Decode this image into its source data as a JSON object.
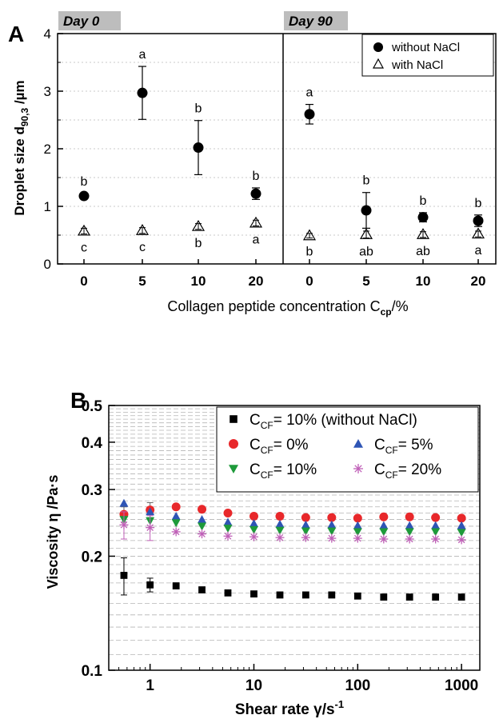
{
  "chart_data": [
    {
      "panel": "A",
      "type": "scatter",
      "xlabel_main": "Collagen peptide concentration C",
      "xlabel_sub": "cp",
      "xlabel_suffix": "/%",
      "ylabel_main": "Droplet size d",
      "ylabel_sub": "90,3",
      "ylabel_suffix": " /µm",
      "ylim": [
        0,
        4
      ],
      "yticks": [
        "0",
        "1",
        "2",
        "3",
        "4"
      ],
      "legend_position": "top-right",
      "legend": [
        "without NaCl",
        "with NaCl"
      ],
      "subpanels": [
        {
          "title": "Day 0",
          "categories": [
            "0",
            "5",
            "10",
            "20"
          ],
          "series": [
            {
              "name": "without NaCl",
              "values": [
                1.18,
                2.97,
                2.02,
                1.22
              ],
              "err": [
                0.04,
                0.46,
                0.47,
                0.1
              ],
              "letters": [
                "b",
                "a",
                "b",
                "b"
              ]
            },
            {
              "name": "with NaCl",
              "values": [
                0.57,
                0.58,
                0.65,
                0.71
              ],
              "err": [
                0.05,
                0.05,
                0.05,
                0.05
              ],
              "letters": [
                "c",
                "c",
                "b",
                "a"
              ]
            }
          ]
        },
        {
          "title": "Day 90",
          "categories": [
            "0",
            "5",
            "10",
            "20"
          ],
          "series": [
            {
              "name": "without NaCl",
              "values": [
                2.6,
                0.93,
                0.81,
                0.75
              ],
              "err": [
                0.17,
                0.31,
                0.08,
                0.1
              ],
              "letters": [
                "a",
                "b",
                "b",
                "b"
              ]
            },
            {
              "name": "with NaCl",
              "values": [
                0.49,
                0.51,
                0.51,
                0.52
              ],
              "err": [
                0.04,
                0.06,
                0.05,
                0.05
              ],
              "letters": [
                "b",
                "ab",
                "ab",
                "a"
              ]
            }
          ]
        }
      ]
    },
    {
      "panel": "B",
      "type": "scatter",
      "xscale": "log",
      "yscale": "log",
      "xlim": [
        0.4,
        1500
      ],
      "ylim": [
        0.1,
        0.5
      ],
      "xticks": [
        1,
        10,
        100,
        1000
      ],
      "xtick_labels": [
        "1",
        "10",
        "100",
        "1000"
      ],
      "yticks": [
        0.1,
        0.2,
        0.3,
        0.4,
        0.5
      ],
      "ytick_labels": [
        "0.1",
        "0.2",
        "0.3",
        "0.4",
        "0.5"
      ],
      "xlabel_main": "Shear rate ",
      "xlabel_symbol": "γ",
      "xlabel_suffix": "/s",
      "xlabel_exp": "-1",
      "ylabel": "Viscosity η /Pa·s",
      "grid": true,
      "legend_position": "top-right",
      "x": [
        0.56,
        1,
        1.78,
        3.16,
        5.62,
        10,
        17.8,
        31.6,
        56.2,
        100,
        178,
        316,
        562,
        1000
      ],
      "series": [
        {
          "name": "C",
          "sub": "CF",
          "label": "= 10% (without NaCl)",
          "marker": "square",
          "color": "#000000",
          "values": [
            0.178,
            0.168,
            0.167,
            0.163,
            0.16,
            0.159,
            0.158,
            0.158,
            0.158,
            0.157,
            0.156,
            0.156,
            0.156,
            0.156
          ],
          "err": [
            0.02,
            0.007
          ]
        },
        {
          "name": "C",
          "sub": "CF",
          "label": "= 0%",
          "marker": "circle",
          "color": "#e8282b",
          "values": [
            0.258,
            0.265,
            0.27,
            0.266,
            0.26,
            0.255,
            0.255,
            0.253,
            0.253,
            0.252,
            0.254,
            0.254,
            0.253,
            0.252
          ],
          "err": [
            0.012,
            0.012
          ]
        },
        {
          "name": "C",
          "sub": "CF",
          "label": "= 5%",
          "marker": "triangle-up",
          "color": "#2f55b5",
          "values": [
            0.276,
            0.262,
            0.255,
            0.25,
            0.246,
            0.244,
            0.243,
            0.242,
            0.242,
            0.241,
            0.241,
            0.241,
            0.241,
            0.241
          ],
          "err": [
            0,
            0
          ]
        },
        {
          "name": "C",
          "sub": "CF",
          "label": "= 10%",
          "marker": "triangle-down",
          "color": "#1e9a3a",
          "values": [
            0.25,
            0.248,
            0.245,
            0.24,
            0.237,
            0.235,
            0.234,
            0.233,
            0.233,
            0.232,
            0.232,
            0.232,
            0.232,
            0.231
          ],
          "err": [
            0,
            0
          ]
        },
        {
          "name": "C",
          "sub": "CF",
          "label": "= 20%",
          "marker": "asterisk",
          "color": "#c060b8",
          "values": [
            0.242,
            0.238,
            0.232,
            0.229,
            0.226,
            0.225,
            0.224,
            0.224,
            0.223,
            0.223,
            0.222,
            0.222,
            0.222,
            0.221
          ],
          "err": [
            0.02,
            0.018
          ]
        }
      ]
    }
  ]
}
